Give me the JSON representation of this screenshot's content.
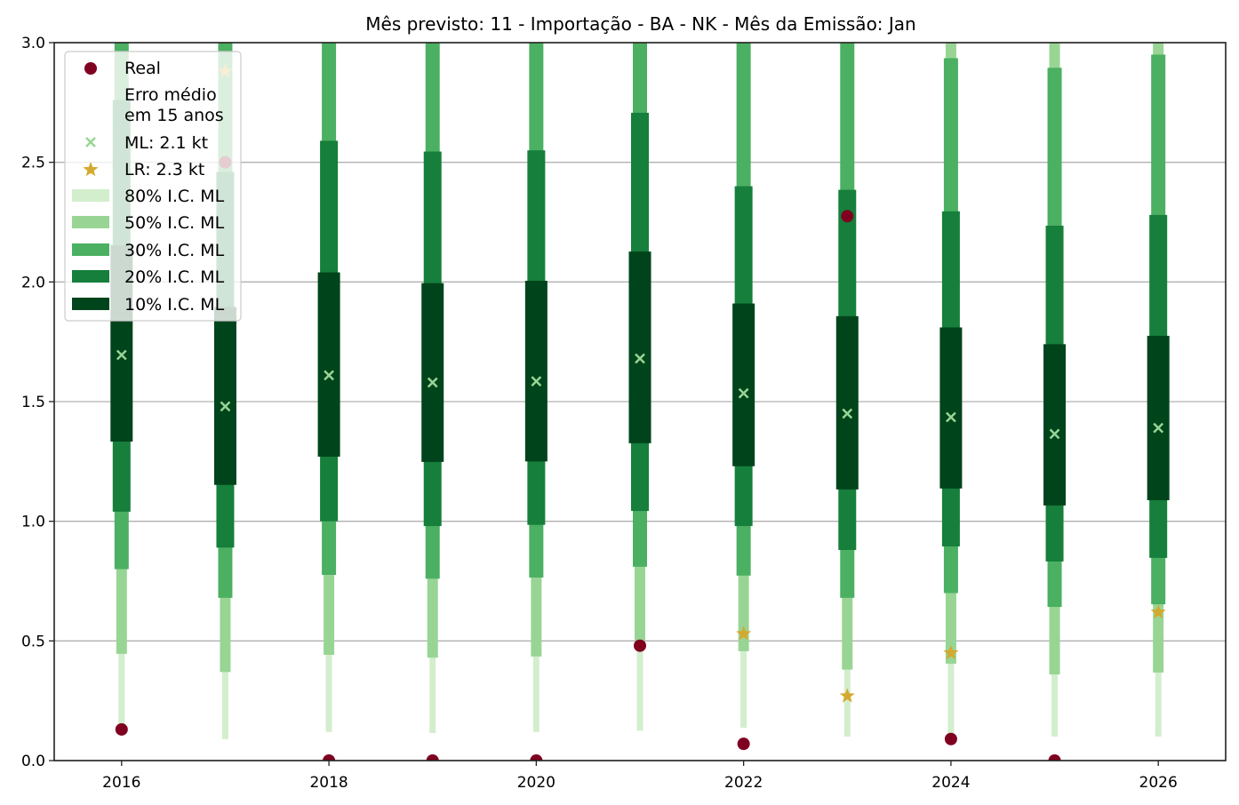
{
  "chart_data": {
    "type": "bar",
    "title": "Mês previsto: 11 - Importação - BA - NK - Mês da Emissão: Jan",
    "xlabel": "",
    "ylabel": "",
    "xlim": [
      2015.35,
      2026.65
    ],
    "ylim": [
      0,
      3.0
    ],
    "grid": "y",
    "x_ticks": [
      "2016",
      "2018",
      "2020",
      "2022",
      "2024",
      "2026"
    ],
    "x_tick_values": [
      2016,
      2018,
      2020,
      2022,
      2024,
      2026
    ],
    "y_ticks": [
      "0.0",
      "0.5",
      "1.0",
      "1.5",
      "2.0",
      "2.5",
      "3.0"
    ],
    "y_tick_values": [
      0,
      0.5,
      1.0,
      1.5,
      2.0,
      2.5,
      3.0
    ],
    "legend_position": "upper-left",
    "legend": {
      "real": "Real",
      "erro_line1": "Erro médio",
      "erro_line2": "em 15 anos",
      "ml": "ML: 2.1 kt",
      "lr": "LR: 2.3 kt",
      "ci80": "80% I.C. ML",
      "ci50": "50% I.C. ML",
      "ci30": "30% I.C. ML",
      "ci20": "20% I.C. ML",
      "ci10": "10% I.C. ML"
    },
    "colors": {
      "ci80": "#d3eecd",
      "ci50": "#98d594",
      "ci30": "#4bb062",
      "ci20": "#157f3b",
      "ci10": "#00441b",
      "real": "#7f0020",
      "ml": "#98d594",
      "lr": "#d4a92f",
      "grid": "#b0b0b0"
    },
    "years": [
      2016,
      2017,
      2018,
      2019,
      2020,
      2021,
      2022,
      2023,
      2024,
      2025,
      2026
    ],
    "ci80": [
      [
        0.15,
        4.0
      ],
      [
        0.09,
        4.0
      ],
      [
        0.12,
        4.0
      ],
      [
        0.115,
        4.0
      ],
      [
        0.12,
        4.0
      ],
      [
        0.125,
        4.0
      ],
      [
        0.137,
        4.0
      ],
      [
        0.1,
        4.0
      ],
      [
        0.1,
        4.0
      ],
      [
        0.1,
        4.0
      ],
      [
        0.1,
        4.0
      ]
    ],
    "ci50": [
      [
        0.446,
        3.6
      ],
      [
        0.37,
        3.6
      ],
      [
        0.442,
        3.6
      ],
      [
        0.43,
        3.6
      ],
      [
        0.435,
        3.6
      ],
      [
        0.47,
        3.6
      ],
      [
        0.457,
        3.6
      ],
      [
        0.38,
        3.6
      ],
      [
        0.405,
        3.6
      ],
      [
        0.36,
        3.6
      ],
      [
        0.368,
        3.6
      ]
    ],
    "ci30": [
      [
        0.8,
        3.3
      ],
      [
        0.68,
        3.3
      ],
      [
        0.776,
        3.3
      ],
      [
        0.76,
        3.3
      ],
      [
        0.765,
        3.3
      ],
      [
        0.81,
        3.3
      ],
      [
        0.773,
        3.3
      ],
      [
        0.68,
        3.3
      ],
      [
        0.7,
        2.935
      ],
      [
        0.642,
        2.895
      ],
      [
        0.653,
        2.95
      ]
    ],
    "ci20": [
      [
        1.04,
        2.76
      ],
      [
        0.89,
        2.46
      ],
      [
        1.0,
        2.59
      ],
      [
        0.98,
        2.545
      ],
      [
        0.985,
        2.55
      ],
      [
        1.043,
        2.707
      ],
      [
        0.98,
        2.4
      ],
      [
        0.88,
        2.385
      ],
      [
        0.895,
        2.295
      ],
      [
        0.832,
        2.235
      ],
      [
        0.847,
        2.28
      ]
    ],
    "ci10": [
      [
        1.333,
        2.154
      ],
      [
        1.152,
        1.895
      ],
      [
        1.27,
        2.04
      ],
      [
        1.248,
        1.995
      ],
      [
        1.25,
        2.005
      ],
      [
        1.326,
        2.127
      ],
      [
        1.23,
        1.91
      ],
      [
        1.133,
        1.857
      ],
      [
        1.137,
        1.81
      ],
      [
        1.066,
        1.74
      ],
      [
        1.088,
        1.775
      ]
    ],
    "ml": [
      1.695,
      1.48,
      1.61,
      1.58,
      1.585,
      1.68,
      1.535,
      1.45,
      1.435,
      1.365,
      1.39
    ],
    "real": [
      0.13,
      2.5,
      0.0,
      0.0,
      0.0,
      0.48,
      0.07,
      2.275,
      0.09,
      0.0,
      null
    ],
    "lr": [
      null,
      2.88,
      null,
      null,
      null,
      null,
      0.53,
      0.27,
      0.45,
      null,
      0.62
    ]
  }
}
